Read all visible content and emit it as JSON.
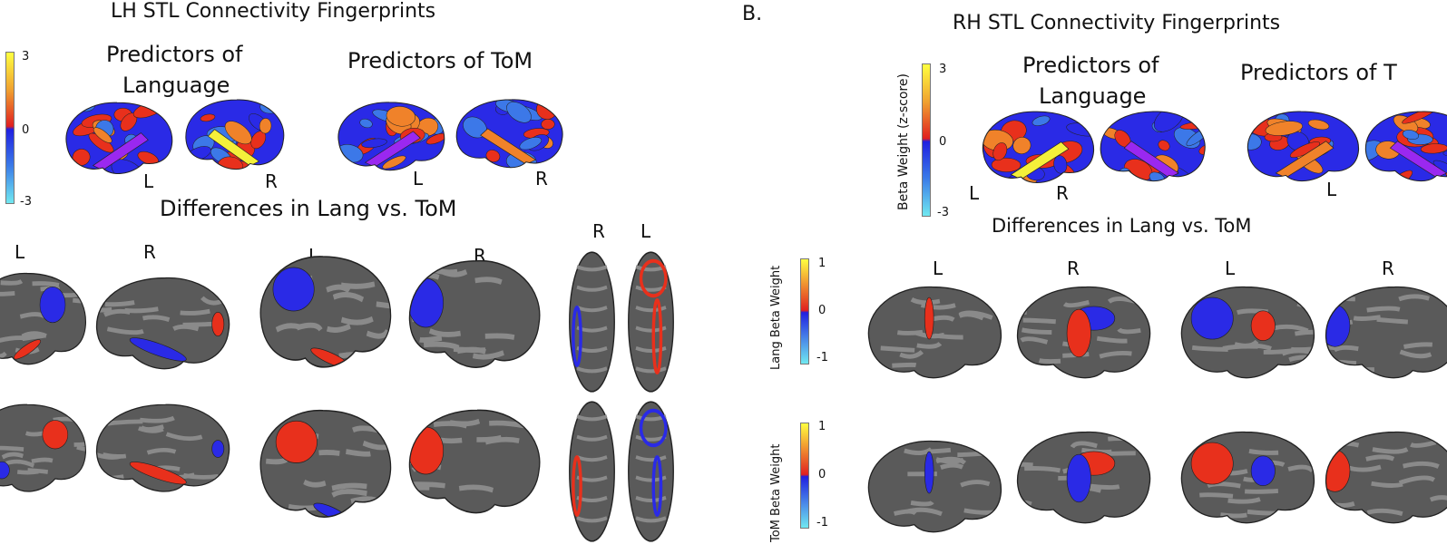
{
  "panel_a": {
    "title": "LH STL Connectivity Fingerprints",
    "colorbar": {
      "max": "3",
      "mid": "0",
      "min": "-3"
    },
    "pred_language": [
      "Predictors of",
      "Language"
    ],
    "pred_tom": "Predictors of ToM",
    "hemi_labels_top": [
      "L",
      "R",
      "L",
      "R"
    ],
    "differences_title": "Differences in Lang vs. ToM",
    "hemi_labels_diff": [
      "L",
      "R",
      "L",
      "R",
      "R",
      "L"
    ]
  },
  "panel_b": {
    "letter": "B.",
    "title": "RH STL Connectivity Fingerprints",
    "colorbar": {
      "label": "Beta Weight (z-score)",
      "max": "3",
      "mid": "0",
      "min": "-3"
    },
    "pred_language": [
      "Predictors of",
      "Language"
    ],
    "pred_tom": "Predictors of T",
    "hemi_labels_top": [
      "L",
      "R",
      "L"
    ],
    "differences_title": "Differences in Lang vs. ToM",
    "lang_colorbar": {
      "label": "Lang Beta Weight",
      "max": "1",
      "mid": "0",
      "min": "-1"
    },
    "tom_colorbar": {
      "label": "ToM Beta Weight",
      "max": "1",
      "mid": "0",
      "min": "-1"
    },
    "hemi_labels_diff": [
      "L",
      "R",
      "L",
      "R"
    ]
  },
  "colors": {
    "positive": "#e8301c",
    "negative": "#2a2ae6",
    "cortex_gray": "#5a5a5a",
    "sulcus_gray": "#8a8a8a",
    "yellow": "#f4f03a",
    "purple": "#9a28f0",
    "lightblue": "#3c78e8",
    "orange": "#f0822a"
  }
}
